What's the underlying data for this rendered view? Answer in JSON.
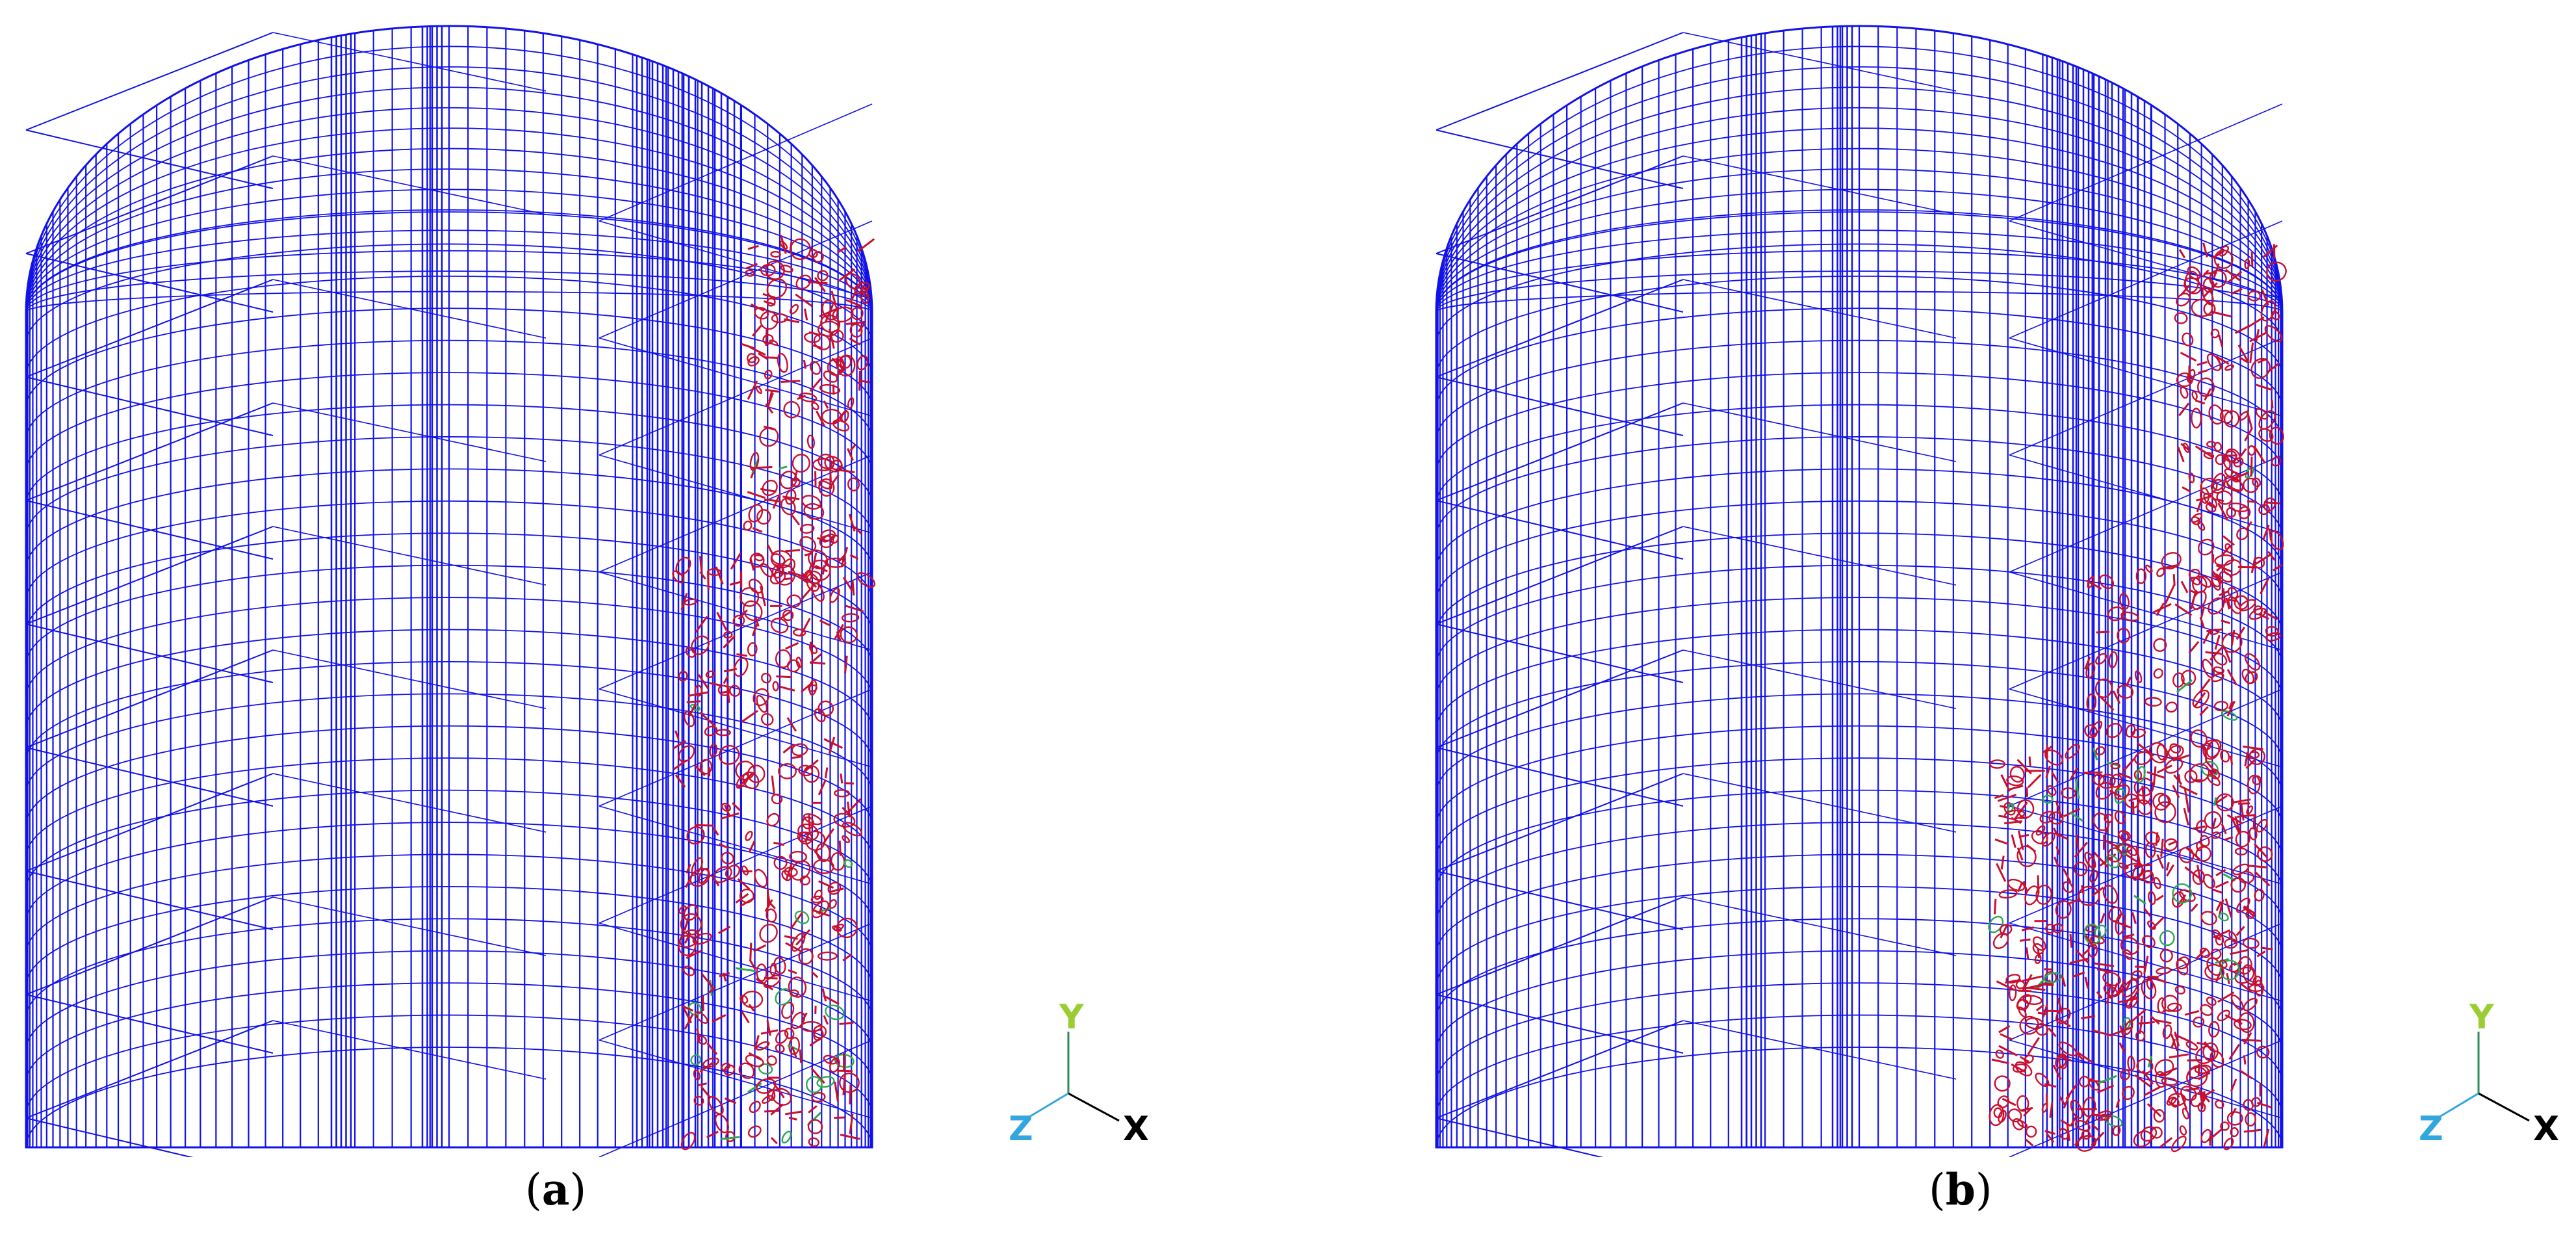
{
  "panels": [
    {
      "id": "a",
      "caption_open": "(",
      "caption_letter": "a",
      "caption_close": ")",
      "triad": {
        "y_label": "Y",
        "x_label": "X",
        "z_label": "Z"
      }
    },
    {
      "id": "b",
      "caption_open": "(",
      "caption_letter": "b",
      "caption_close": ")",
      "triad": {
        "y_label": "Y",
        "x_label": "X",
        "z_label": "Z"
      }
    }
  ],
  "colors": {
    "mesh": "#1212e8",
    "crack": "#c8102e",
    "crack_secondary": "#2fa84f",
    "axis_y": "#9acd32",
    "axis_z": "#33a6df",
    "axis_x": "#000000",
    "axis_line": "#2e8b57"
  }
}
